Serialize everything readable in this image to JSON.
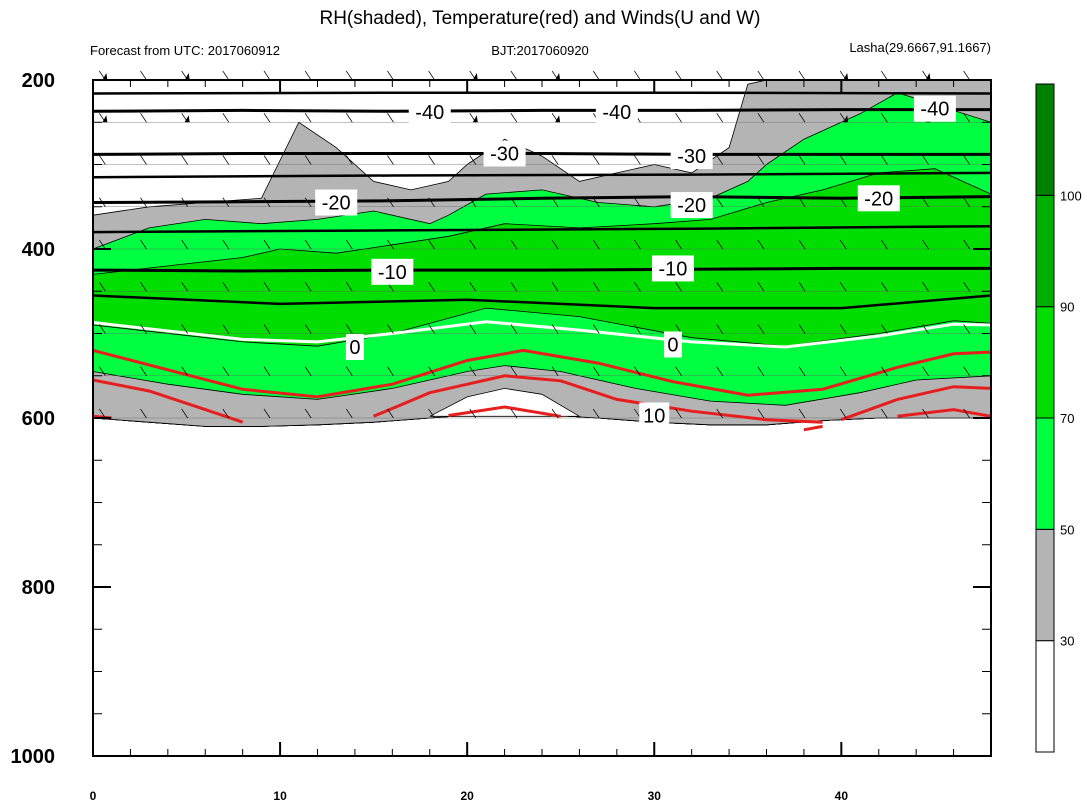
{
  "chart_data": {
    "type": "contour",
    "title": "RH(shaded), Temperature(red) and Winds(U and W)",
    "left_subtitle": "Forecast from UTC: 2017060912",
    "center_subtitle": "BJT:2017060920",
    "right_subtitle": "Lasha(29.6667,91.1667)",
    "x_ticks": [
      0,
      10,
      20,
      30,
      40
    ],
    "x_range": [
      0,
      48
    ],
    "y_ticks": [
      200,
      400,
      600,
      800,
      1000
    ],
    "y_range": [
      200,
      1000
    ],
    "y_reversed": true,
    "colorbar": {
      "levels": [
        30,
        50,
        70,
        90,
        100
      ],
      "colors": [
        "#ffffff",
        "#b4b4b4",
        "#00ff40",
        "#00de00",
        "#00b000",
        "#008000"
      ]
    },
    "rh_fill": {
      "gray_top": [
        [
          0,
          360
        ],
        [
          3,
          350
        ],
        [
          6,
          345
        ],
        [
          9,
          340
        ],
        [
          11,
          250
        ],
        [
          13,
          280
        ],
        [
          15,
          320
        ],
        [
          17,
          330
        ],
        [
          19,
          320
        ],
        [
          20,
          300
        ],
        [
          22,
          270
        ],
        [
          24,
          290
        ],
        [
          26,
          320
        ],
        [
          28,
          310
        ],
        [
          30,
          300
        ],
        [
          32,
          310
        ],
        [
          34,
          280
        ],
        [
          35,
          205
        ],
        [
          36,
          200
        ],
        [
          48,
          200
        ]
      ],
      "green50_top": [
        [
          0,
          400
        ],
        [
          3,
          375
        ],
        [
          6,
          365
        ],
        [
          9,
          370
        ],
        [
          12,
          365
        ],
        [
          15,
          355
        ],
        [
          18,
          370
        ],
        [
          19,
          360
        ],
        [
          21,
          335
        ],
        [
          24,
          330
        ],
        [
          27,
          345
        ],
        [
          30,
          350
        ],
        [
          33,
          340
        ],
        [
          35,
          320
        ],
        [
          36,
          300
        ],
        [
          38,
          270
        ],
        [
          41,
          240
        ],
        [
          43,
          215
        ],
        [
          48,
          250
        ]
      ],
      "green70_top": [
        [
          0,
          430
        ],
        [
          4,
          420
        ],
        [
          8,
          410
        ],
        [
          10,
          400
        ],
        [
          13,
          405
        ],
        [
          16,
          395
        ],
        [
          19,
          385
        ],
        [
          22,
          370
        ],
        [
          26,
          375
        ],
        [
          30,
          370
        ],
        [
          33,
          365
        ],
        [
          36,
          345
        ],
        [
          39,
          330
        ],
        [
          42,
          310
        ],
        [
          45,
          305
        ],
        [
          48,
          335
        ]
      ],
      "bottom": [
        [
          0,
          600
        ],
        [
          3,
          605
        ],
        [
          6,
          610
        ],
        [
          9,
          610
        ],
        [
          12,
          608
        ],
        [
          15,
          605
        ],
        [
          18,
          600
        ],
        [
          21,
          595
        ],
        [
          24,
          596
        ],
        [
          27,
          600
        ],
        [
          30,
          605
        ],
        [
          33,
          608
        ],
        [
          36,
          608
        ],
        [
          39,
          603
        ],
        [
          42,
          600
        ],
        [
          45,
          600
        ],
        [
          48,
          600
        ]
      ]
    },
    "temperature_contours": [
      {
        "value": -40,
        "label": "-40",
        "points": [
          [
            0,
            237
          ],
          [
            8,
            236
          ],
          [
            16,
            237
          ],
          [
            24,
            236
          ],
          [
            32,
            236
          ],
          [
            40,
            235
          ],
          [
            48,
            235
          ]
        ],
        "labels_at": [
          [
            18,
            238
          ],
          [
            28,
            238
          ],
          [
            45,
            234
          ]
        ]
      },
      {
        "value": -30,
        "label": "-30",
        "points": [
          [
            0,
            288
          ],
          [
            8,
            287
          ],
          [
            16,
            287
          ],
          [
            24,
            287
          ],
          [
            32,
            288
          ],
          [
            40,
            288
          ],
          [
            48,
            288
          ]
        ],
        "labels_at": [
          [
            22,
            287
          ],
          [
            32,
            290
          ]
        ]
      },
      {
        "value": -20,
        "label": "-20",
        "points": [
          [
            0,
            345
          ],
          [
            8,
            344
          ],
          [
            16,
            343
          ],
          [
            24,
            340
          ],
          [
            32,
            338
          ],
          [
            40,
            340
          ],
          [
            48,
            338
          ]
        ],
        "labels_at": [
          [
            13,
            345
          ],
          [
            32,
            348
          ],
          [
            42,
            340
          ]
        ]
      },
      {
        "value": -10,
        "label": "-10",
        "points": [
          [
            0,
            425
          ],
          [
            8,
            426
          ],
          [
            16,
            425
          ],
          [
            24,
            425
          ],
          [
            32,
            424
          ],
          [
            40,
            423
          ],
          [
            48,
            423
          ]
        ],
        "labels_at": [
          [
            16,
            427
          ],
          [
            31,
            423
          ]
        ]
      },
      {
        "value": 0,
        "label": "0",
        "points": [
          [
            0,
            487
          ],
          [
            8,
            507
          ],
          [
            12,
            510
          ],
          [
            16,
            500
          ],
          [
            21,
            486
          ],
          [
            26,
            496
          ],
          [
            32,
            510
          ],
          [
            37,
            516
          ],
          [
            42,
            503
          ],
          [
            46,
            489
          ],
          [
            48,
            490
          ]
        ],
        "labels_at": [
          [
            14,
            516
          ],
          [
            31,
            513
          ]
        ]
      },
      {
        "value": 10,
        "label": "10",
        "points": [
          [
            30,
            597
          ]
        ],
        "labels_at": [
          [
            30,
            597
          ]
        ]
      }
    ],
    "red_isotherms": [
      [
        [
          0,
          520
        ],
        [
          4,
          543
        ],
        [
          8,
          566
        ],
        [
          12,
          575
        ],
        [
          16,
          560
        ],
        [
          20,
          532
        ],
        [
          23,
          520
        ],
        [
          27,
          535
        ],
        [
          31,
          557
        ],
        [
          35,
          573
        ],
        [
          39,
          566
        ],
        [
          43,
          540
        ],
        [
          46,
          524
        ],
        [
          48,
          522
        ]
      ],
      [
        [
          0,
          555
        ],
        [
          3,
          568
        ],
        [
          6,
          590
        ],
        [
          8,
          605
        ]
      ],
      [
        [
          15,
          598
        ],
        [
          18,
          570
        ],
        [
          22,
          550
        ],
        [
          25,
          556
        ],
        [
          28,
          578
        ],
        [
          32,
          592
        ],
        [
          36,
          602
        ],
        [
          39,
          605
        ]
      ],
      [
        [
          40,
          602
        ],
        [
          43,
          578
        ],
        [
          46,
          563
        ],
        [
          48,
          565
        ]
      ],
      [
        [
          19,
          597
        ],
        [
          22,
          587
        ],
        [
          25,
          598
        ]
      ],
      [
        [
          43,
          598
        ],
        [
          46,
          590
        ],
        [
          48,
          598
        ]
      ],
      [
        [
          0,
          598
        ],
        [
          1,
          600
        ]
      ],
      [
        [
          38,
          614
        ],
        [
          39,
          610
        ]
      ]
    ],
    "wind_levels": [
      200,
      250,
      300,
      350,
      400,
      450,
      500,
      550,
      600
    ]
  }
}
